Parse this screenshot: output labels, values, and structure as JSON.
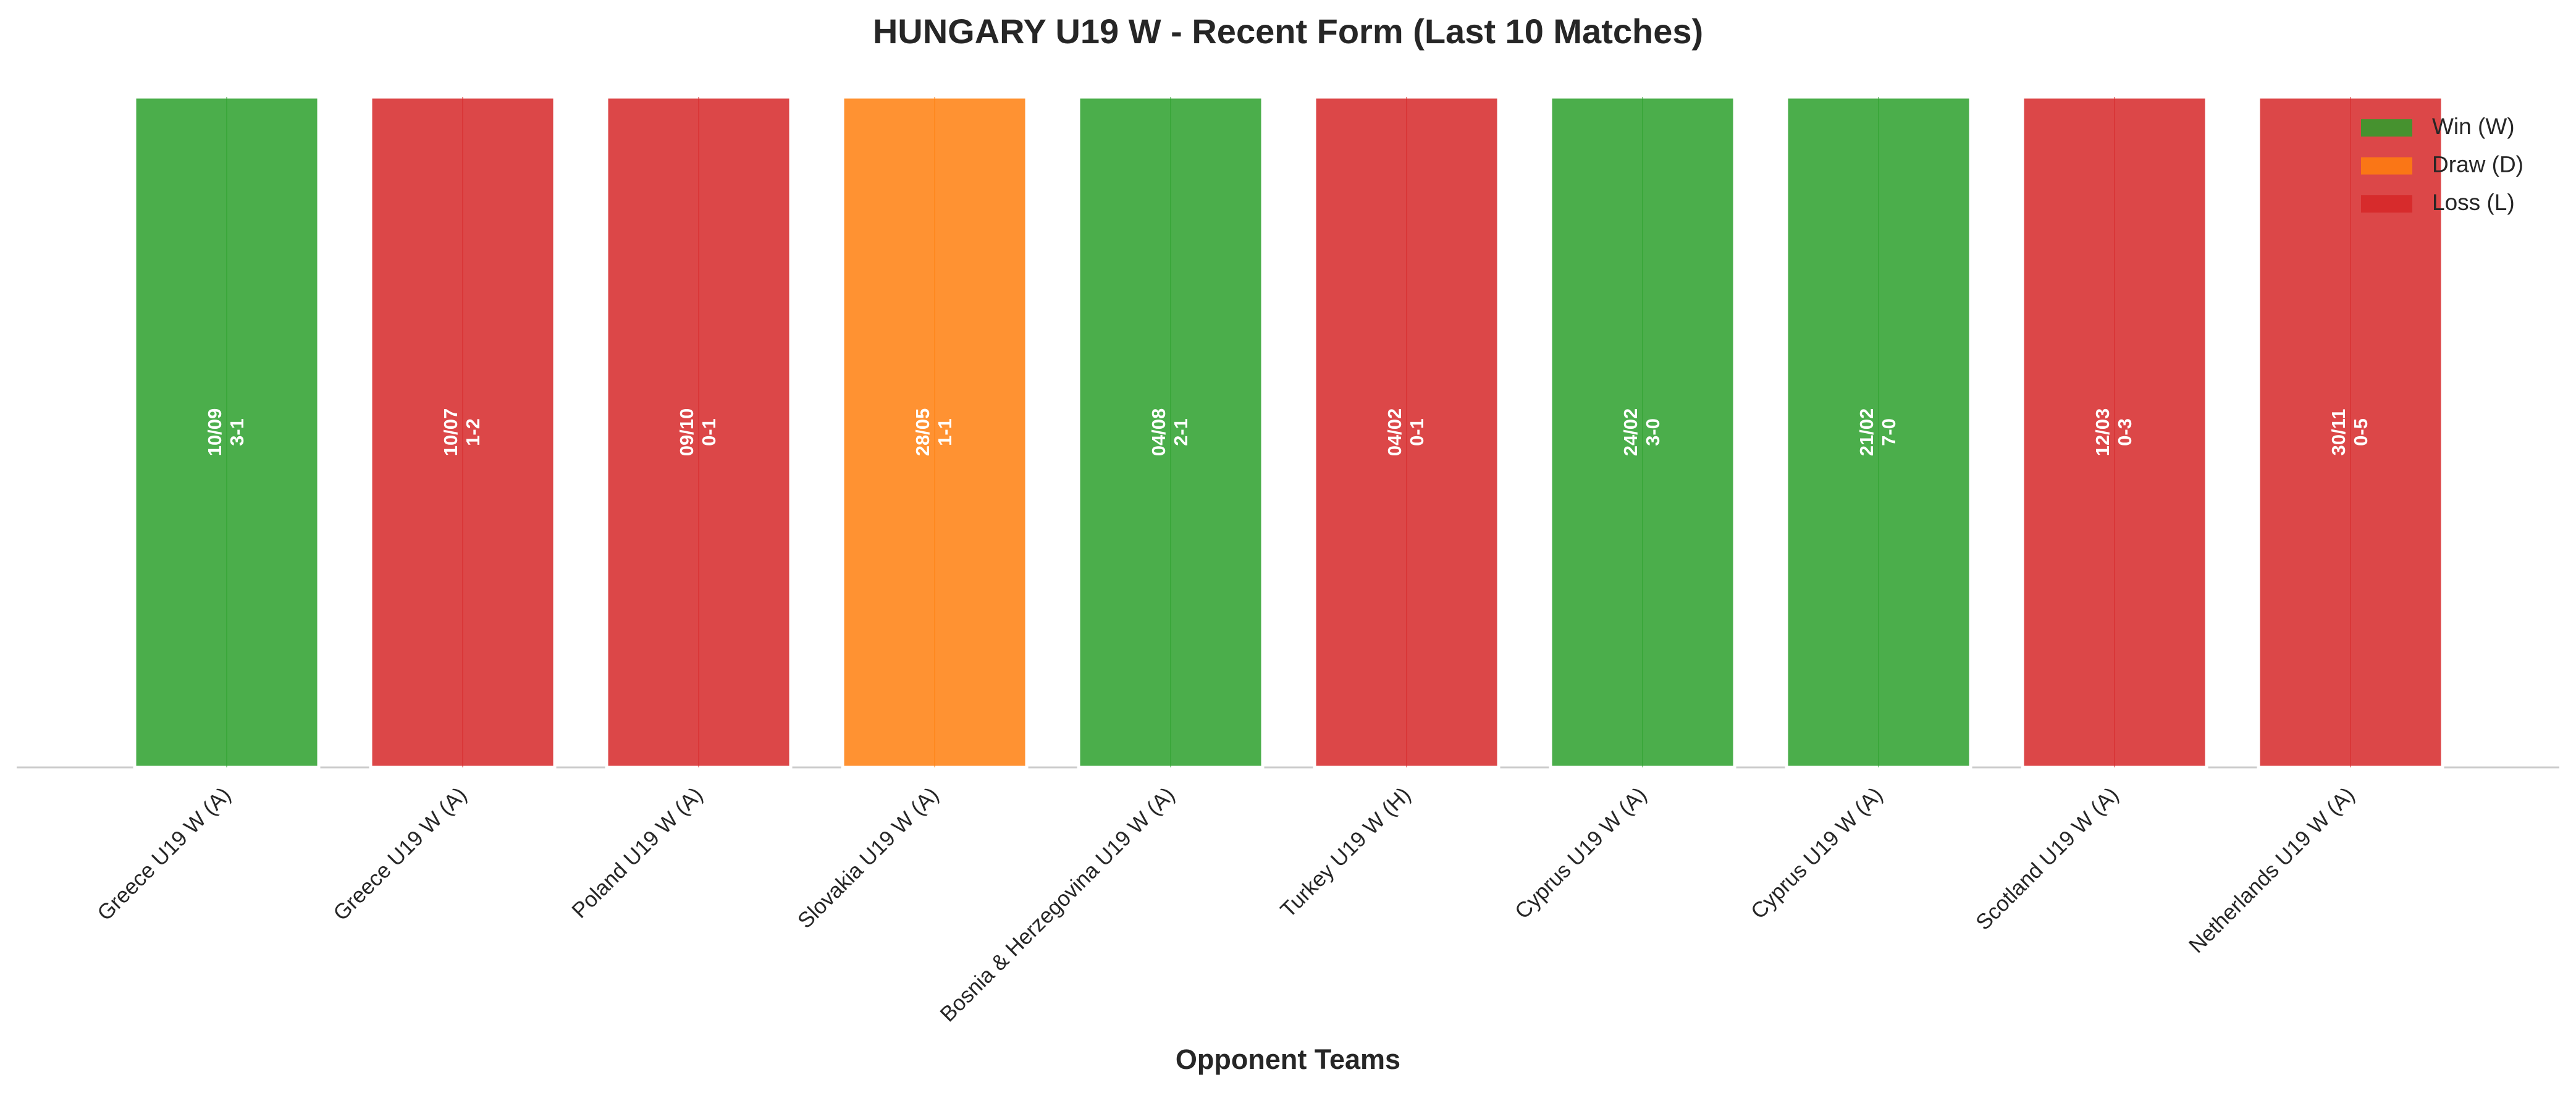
{
  "chart_data": {
    "type": "bar",
    "title": "HUNGARY U19 W - Recent Form (Last 10 Matches)",
    "x_label": "Opponent Teams",
    "categories": [
      "Greece U19 W (A)",
      "Greece U19 W (A)",
      "Poland U19 W (A)",
      "Slovakia U19 W (A)",
      "Bosnia & Herzegovina U19 W (A)",
      "Turkey U19 W (H)",
      "Cyprus U19 W (A)",
      "Cyprus U19 W (A)",
      "Scotland U19 W (A)",
      "Netherlands U19 W (A)"
    ],
    "values": [
      1,
      1,
      1,
      1,
      1,
      1,
      1,
      1,
      1,
      1
    ],
    "dates": [
      "10/09",
      "10/07",
      "09/10",
      "28/05",
      "04/08",
      "04/02",
      "24/02",
      "21/02",
      "12/03",
      "30/11"
    ],
    "scores": [
      "3-1",
      "1-2",
      "0-1",
      "1-1",
      "2-1",
      "0-1",
      "3-0",
      "7-0",
      "0-3",
      "0-5"
    ],
    "colors": [
      "#2ca02c",
      "#d62728",
      "#d62728",
      "#ff7f0e",
      "#2ca02c",
      "#d62728",
      "#2ca02c",
      "#2ca02c",
      "#d62728",
      "#d62728"
    ],
    "ylim": [
      0,
      1
    ],
    "legend_loc": "upper right",
    "legend": [
      {
        "label": "Win (W)",
        "color": "#2ca02c"
      },
      {
        "label": "Draw (D)",
        "color": "#ff7f0e"
      },
      {
        "label": "Loss (L)",
        "color": "#d62728"
      }
    ]
  }
}
